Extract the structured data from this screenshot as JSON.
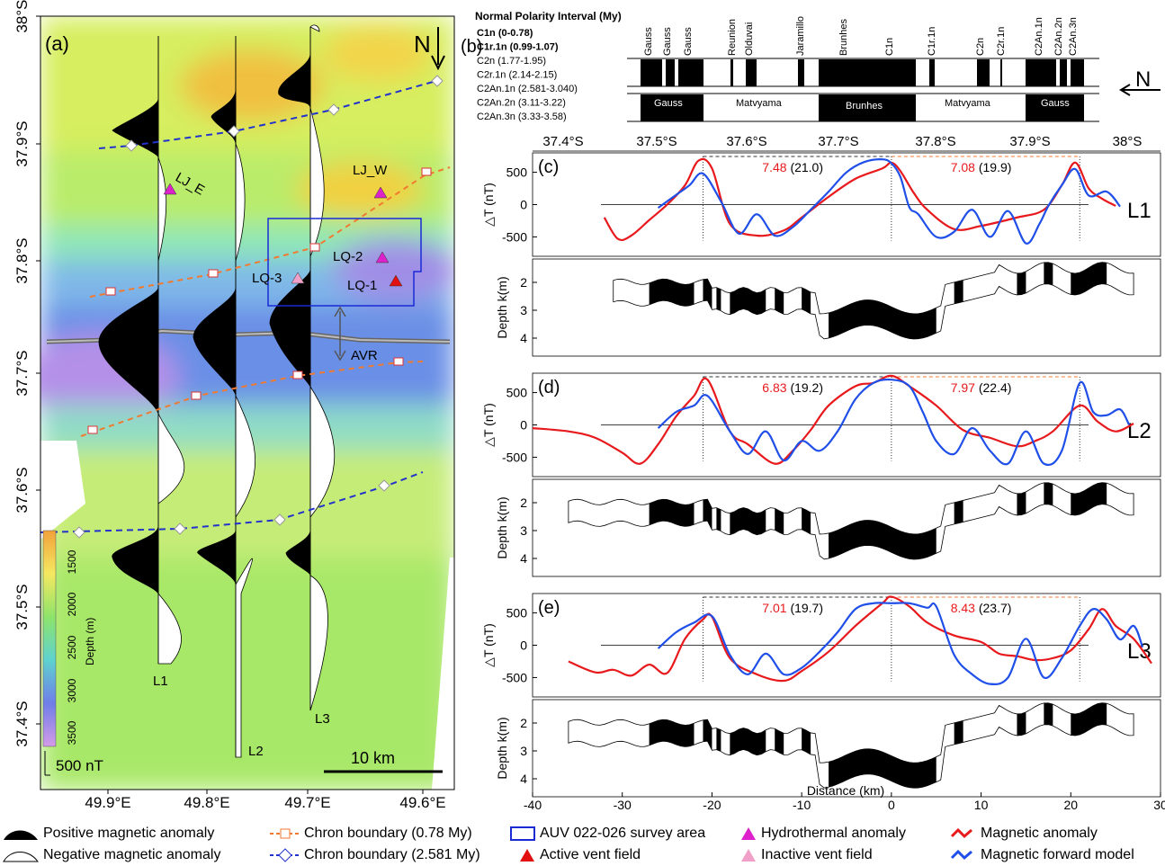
{
  "map": {
    "panel_label": "(a)",
    "lat_labels": [
      "38°S",
      "37.9°S",
      "37.8°S",
      "37.7°S",
      "37.6°S",
      "37.5°S",
      "37.4°S"
    ],
    "lon_labels": [
      "49.9°E",
      "49.8°E",
      "49.7°E",
      "49.6°E"
    ],
    "north_label": "N",
    "profiles": [
      "L1",
      "L2",
      "L3"
    ],
    "sites": [
      "LJ_E",
      "LJ_W",
      "LQ-2",
      "LQ-3",
      "LQ-1"
    ],
    "ridge_label": "AVR",
    "colorbar_title": "Depth (m)",
    "colorbar_ticks": [
      "1500",
      "2000",
      "2500",
      "3000",
      "3500"
    ],
    "scale_nt": "500 nT",
    "scale_km": "10 km",
    "colors": {
      "chron_078": "#f07a30",
      "chron_2581": "#2233cc",
      "survey": "#1a2bd6",
      "hydro": "#dd22cc",
      "active": "#e21010",
      "inactive": "#f0a0c8"
    }
  },
  "polarity": {
    "panel_label": "(b)",
    "title": "Normal Polarity Interval (My)",
    "intervals": [
      "C1n (0-0.78)",
      "C1r.1n (0.99-1.07)",
      "C2n (1.77-1.95)",
      "C2r.1n (2.14-2.15)",
      "C2An.1n (2.581-3.040)",
      "C2An.2n (3.11-3.22)",
      "C2An.3n (3.33-3.58)"
    ],
    "top_labels": [
      "Gauss",
      "Gauss",
      "Gauss",
      "Reunion",
      "Olduvai",
      "Jaramillo",
      "Brunhes",
      "C1n",
      "C1r.1n",
      "C2n",
      "C2r.1n",
      "C2An.1n",
      "C2An.2n",
      "C2An.3n"
    ],
    "epochs": [
      "Gauss",
      "Matvyama",
      "Brunhes",
      "Matvyama",
      "Gauss"
    ],
    "north_label": "N",
    "lat_ticks": [
      "37.4°S",
      "37.5°S",
      "37.6°S",
      "37.7°S",
      "37.8°S",
      "37.9°S",
      "38°S"
    ]
  },
  "chart_data": [
    {
      "type": "line",
      "panel": "(c)",
      "profile": "L1",
      "ylabel": "△T (nT)",
      "ylim": [
        -800,
        800
      ],
      "yticks": [
        -500,
        0,
        500
      ],
      "half_rates": [
        {
          "rate": "7.48",
          "dist": "(21.0)"
        },
        {
          "rate": "7.08",
          "dist": "(19.9)"
        }
      ],
      "series": [
        {
          "name": "Magnetic anomaly",
          "color": "#e8191c",
          "x": [
            -32,
            -30.5,
            -29,
            -27,
            -25,
            -23,
            -21.5,
            -20,
            -18,
            -15,
            -12,
            -10,
            -7,
            -4,
            -1,
            0,
            1,
            2.5,
            4,
            7,
            10,
            14,
            17,
            19,
            20.5,
            22,
            23.5,
            25
          ],
          "y": [
            -200,
            -530,
            -480,
            -240,
            0,
            300,
            680,
            560,
            -300,
            -480,
            -400,
            -200,
            120,
            400,
            560,
            650,
            520,
            180,
            -80,
            -380,
            -330,
            -200,
            -80,
            300,
            650,
            250,
            90,
            -20
          ]
        },
        {
          "name": "Magnetic forward model",
          "color": "#1f4fe8",
          "x": [
            -26,
            -24,
            -22.5,
            -21,
            -19,
            -17,
            -15,
            -13,
            -11,
            -9,
            -7,
            -5,
            -3,
            -1,
            0,
            1,
            2,
            3,
            5,
            7,
            9,
            11,
            13,
            15,
            16.5,
            17.5,
            19,
            20.5,
            22,
            24,
            25.5
          ],
          "y": [
            -50,
            150,
            300,
            480,
            50,
            -450,
            -150,
            -480,
            -350,
            -80,
            200,
            500,
            660,
            700,
            640,
            430,
            -40,
            -150,
            -500,
            -420,
            -80,
            -500,
            -100,
            -600,
            -300,
            -20,
            300,
            550,
            140,
            200,
            -30
          ]
        }
      ]
    },
    {
      "type": "line",
      "panel": "(d)",
      "profile": "L2",
      "ylabel": "△T (nT)",
      "ylim": [
        -800,
        800
      ],
      "yticks": [
        -500,
        0,
        500
      ],
      "half_rates": [
        {
          "rate": "6.83",
          "dist": "(19.2)"
        },
        {
          "rate": "7.97",
          "dist": "(22.4)"
        }
      ],
      "series": [
        {
          "name": "Magnetic anomaly",
          "color": "#e8191c",
          "x": [
            -40,
            -36,
            -33,
            -30,
            -28,
            -26,
            -24,
            -22,
            -20.5,
            -18,
            -16,
            -13,
            -11,
            -9,
            -7,
            -4,
            -2,
            0,
            2,
            5,
            8,
            11,
            14,
            16,
            18,
            21,
            23,
            25,
            27
          ],
          "y": [
            -50,
            -100,
            -200,
            -430,
            -600,
            -300,
            130,
            450,
            700,
            -100,
            -300,
            -600,
            -400,
            -80,
            300,
            600,
            650,
            760,
            600,
            300,
            -80,
            -200,
            -330,
            -250,
            -100,
            300,
            50,
            -100,
            20
          ]
        },
        {
          "name": "Magnetic forward model",
          "color": "#1f4fe8",
          "x": [
            -26,
            -24,
            -22,
            -20.5,
            -18,
            -16,
            -14,
            -12,
            -10,
            -8,
            -6,
            -4,
            -2,
            0,
            2,
            3.5,
            5,
            7,
            9,
            11,
            13,
            15,
            17,
            19,
            21,
            22.5,
            24,
            25.5,
            26.5
          ],
          "y": [
            -50,
            200,
            300,
            450,
            -100,
            -450,
            -100,
            -550,
            -250,
            -400,
            -100,
            400,
            650,
            700,
            600,
            200,
            -250,
            -450,
            -50,
            -400,
            -600,
            -100,
            -600,
            -400,
            650,
            200,
            150,
            240,
            0
          ]
        }
      ]
    },
    {
      "type": "line",
      "panel": "(e)",
      "profile": "L3",
      "ylabel": "△T (nT)",
      "xlabel": "Distance (km)",
      "xlim": [
        -40,
        30
      ],
      "xticks": [
        -40,
        -30,
        -20,
        -10,
        0,
        10,
        20,
        30
      ],
      "ylim": [
        -800,
        800
      ],
      "yticks": [
        -500,
        0,
        500
      ],
      "half_rates": [
        {
          "rate": "7.01",
          "dist": "(19.7)"
        },
        {
          "rate": "8.43",
          "dist": "(23.7)"
        }
      ],
      "series": [
        {
          "name": "Magnetic anomaly",
          "color": "#e8191c",
          "x": [
            -36,
            -33,
            -31,
            -29,
            -27,
            -25,
            -23,
            -21,
            -20,
            -18,
            -15,
            -12,
            -10,
            -7,
            -4,
            -1,
            0,
            2,
            4,
            7,
            10,
            12,
            14,
            16,
            18,
            20,
            22,
            23.5,
            25,
            27,
            29
          ],
          "y": [
            -250,
            -420,
            -380,
            -470,
            -300,
            -430,
            100,
            400,
            440,
            -200,
            -450,
            -550,
            -400,
            -100,
            300,
            650,
            750,
            600,
            350,
            150,
            50,
            -130,
            -170,
            -230,
            -200,
            -80,
            250,
            560,
            300,
            100,
            -280
          ]
        },
        {
          "name": "Magnetic forward model",
          "color": "#1f4fe8",
          "x": [
            -26,
            -24,
            -22,
            -20,
            -18,
            -16,
            -14,
            -12,
            -10,
            -8,
            -6,
            -4,
            -2,
            0,
            2,
            4,
            5,
            7,
            9,
            11,
            13,
            15,
            17,
            19,
            21,
            22.5,
            24,
            25.5,
            27,
            28
          ],
          "y": [
            -50,
            200,
            350,
            450,
            -150,
            -450,
            -130,
            -450,
            -350,
            -100,
            200,
            560,
            650,
            650,
            650,
            580,
            600,
            -150,
            -450,
            -600,
            -500,
            100,
            -500,
            -200,
            300,
            560,
            400,
            90,
            300,
            -30
          ]
        }
      ]
    }
  ],
  "depth_axis": {
    "label": "Depth k(m)",
    "ticks": [
      "2",
      "3",
      "4"
    ]
  },
  "legend": [
    {
      "label": "Positive magnetic anomaly",
      "icon": "filled-wiggle"
    },
    {
      "label": "Negative magnetic anomaly",
      "icon": "open-wiggle"
    },
    {
      "label": "Chron boundary (0.78 My)",
      "icon": "orange-dashed-square"
    },
    {
      "label": "Chron boundary (2.581 My)",
      "icon": "blue-dashed-diamond"
    },
    {
      "label": "AUV 022-026 survey area",
      "icon": "blue-box"
    },
    {
      "label": "Active vent field",
      "icon": "red-triangle"
    },
    {
      "label": "Hydrothermal anomaly",
      "icon": "magenta-triangle"
    },
    {
      "label": "Inactive vent field",
      "icon": "pink-triangle"
    },
    {
      "label": "Magnetic anomaly",
      "icon": "red-line"
    },
    {
      "label": "Magnetic forward model",
      "icon": "blue-line"
    }
  ]
}
